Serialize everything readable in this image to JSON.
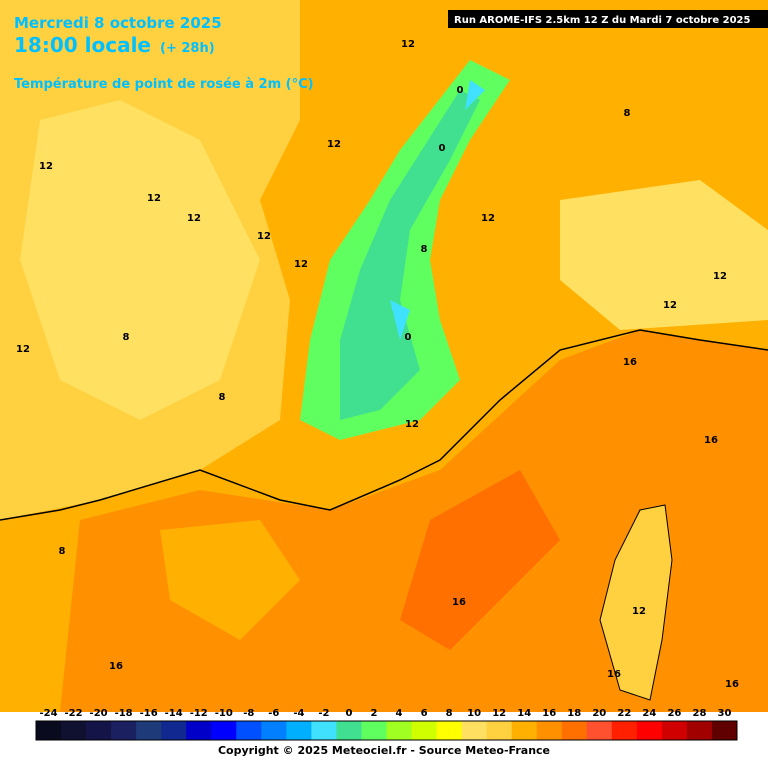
{
  "header": {
    "date": "Mercredi 8 octobre 2025",
    "time": "18:00 locale",
    "lead": "(+ 28h)",
    "variable": "Température de point de rosée à 2m (°C)"
  },
  "run": "Run AROME-IFS 2.5km 12 Z du Mardi 7 octobre 2025",
  "contour_labels": [
    12,
    8,
    12,
    12,
    12,
    12,
    12,
    12,
    12,
    12,
    12,
    12,
    8,
    8,
    12,
    16,
    16,
    8,
    16,
    12,
    16,
    16,
    16,
    0,
    8,
    0,
    0
  ],
  "colorbar": {
    "ticks": [
      -24,
      -22,
      -20,
      -18,
      -16,
      -14,
      -12,
      -10,
      -8,
      -6,
      -4,
      -2,
      0,
      2,
      4,
      6,
      8,
      10,
      12,
      14,
      16,
      18,
      20,
      22,
      24,
      26,
      28,
      30
    ],
    "colors": [
      "#0a0a1e",
      "#101030",
      "#141448",
      "#1a2060",
      "#1e3a78",
      "#102890",
      "#0000c8",
      "#0000ff",
      "#0050ff",
      "#0080ff",
      "#00b0ff",
      "#40e0ff",
      "#40e090",
      "#60ff60",
      "#a0ff20",
      "#d0ff00",
      "#ffff00",
      "#ffe060",
      "#ffd040",
      "#ffb000",
      "#ff9000",
      "#ff7000",
      "#ff5030",
      "#ff2000",
      "#ff0000",
      "#d00000",
      "#a00000",
      "#600000"
    ]
  },
  "copyright": "Copyright © 2025 Meteociel.fr - Source Meteo-France"
}
